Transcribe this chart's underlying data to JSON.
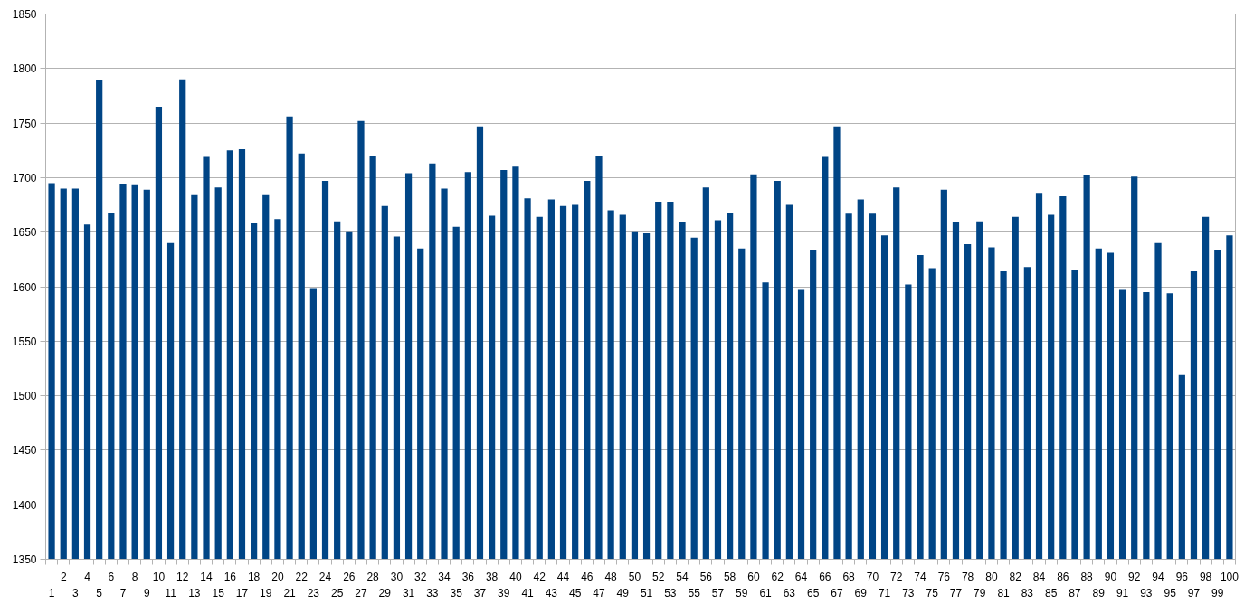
{
  "chart_data": {
    "type": "bar",
    "categories": [
      "1",
      "2",
      "3",
      "4",
      "5",
      "6",
      "7",
      "8",
      "9",
      "10",
      "11",
      "12",
      "13",
      "14",
      "15",
      "16",
      "17",
      "18",
      "19",
      "20",
      "21",
      "22",
      "23",
      "24",
      "25",
      "26",
      "27",
      "28",
      "29",
      "30",
      "31",
      "32",
      "33",
      "34",
      "35",
      "36",
      "37",
      "38",
      "39",
      "40",
      "41",
      "42",
      "43",
      "44",
      "45",
      "46",
      "47",
      "48",
      "49",
      "50",
      "51",
      "52",
      "53",
      "54",
      "55",
      "56",
      "57",
      "58",
      "59",
      "60",
      "61",
      "62",
      "63",
      "64",
      "65",
      "66",
      "67",
      "68",
      "69",
      "70",
      "71",
      "72",
      "73",
      "74",
      "75",
      "76",
      "77",
      "78",
      "79",
      "80",
      "81",
      "82",
      "83",
      "84",
      "85",
      "86",
      "87",
      "88",
      "89",
      "90",
      "91",
      "92",
      "93",
      "94",
      "95",
      "96",
      "97",
      "98",
      "99",
      "100"
    ],
    "values": [
      1695,
      1690,
      1690,
      1657,
      1789,
      1668,
      1694,
      1693,
      1689,
      1765,
      1640,
      1790,
      1684,
      1719,
      1691,
      1725,
      1726,
      1658,
      1684,
      1662,
      1756,
      1722,
      1598,
      1697,
      1660,
      1650,
      1752,
      1720,
      1674,
      1646,
      1704,
      1635,
      1713,
      1690,
      1655,
      1705,
      1747,
      1665,
      1707,
      1710,
      1681,
      1664,
      1680,
      1674,
      1675,
      1697,
      1720,
      1670,
      1666,
      1650,
      1649,
      1678,
      1678,
      1659,
      1645,
      1691,
      1661,
      1668,
      1635,
      1703,
      1604,
      1697,
      1675,
      1597,
      1634,
      1719,
      1747,
      1667,
      1680,
      1667,
      1647,
      1691,
      1602,
      1629,
      1617,
      1689,
      1659,
      1639,
      1660,
      1636,
      1614,
      1664,
      1618,
      1686,
      1666,
      1683,
      1615,
      1702,
      1635,
      1631,
      1597,
      1701,
      1595,
      1640,
      1594,
      1519,
      1614,
      1664,
      1634,
      1647
    ],
    "color": "#004586",
    "ylim": [
      1350,
      1850
    ],
    "yticks": [
      1350,
      1400,
      1450,
      1500,
      1550,
      1600,
      1650,
      1700,
      1750,
      1800,
      1850
    ],
    "grid": "y"
  }
}
